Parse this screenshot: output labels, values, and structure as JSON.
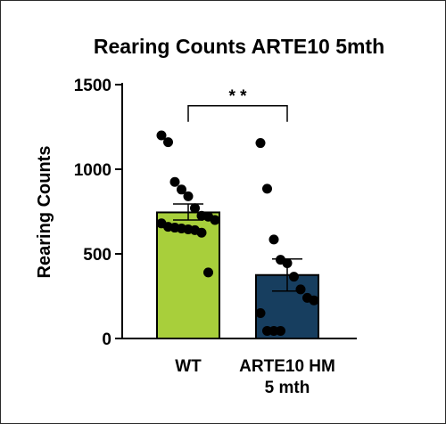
{
  "chart_data": {
    "type": "bar",
    "title": "Rearing Counts ARTE10 5mth",
    "xlabel": "",
    "ylabel": "Rearing Counts",
    "ylim": [
      0,
      1500
    ],
    "yticks": [
      "0",
      "500",
      "1000",
      "1500"
    ],
    "categories": [
      "WT",
      "ARTE10 HM\n5 mth"
    ],
    "bars": [
      {
        "category": "WT",
        "mean": 745,
        "sem_low": 700,
        "sem_high": 795,
        "color": "#a8cf3b",
        "points": [
          1200,
          1160,
          925,
          880,
          840,
          770,
          725,
          720,
          700,
          680,
          660,
          655,
          650,
          645,
          640,
          625,
          390
        ]
      },
      {
        "category": "ARTE10 HM\n5 mth",
        "mean": 375,
        "sem_low": 280,
        "sem_high": 470,
        "color": "#173e5f",
        "points": [
          1155,
          885,
          585,
          465,
          445,
          365,
          290,
          240,
          225,
          150,
          45,
          45,
          45
        ]
      }
    ],
    "significance": {
      "pair": [
        0,
        1
      ],
      "label": "* *"
    },
    "grid": false,
    "legend": "none"
  }
}
